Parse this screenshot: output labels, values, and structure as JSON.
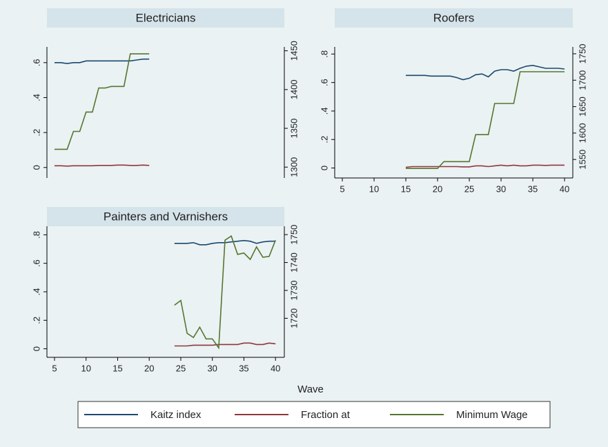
{
  "chart_data": [
    {
      "type": "line",
      "title": "Electricians",
      "x": [
        5,
        6,
        7,
        8,
        9,
        10,
        11,
        12,
        13,
        14,
        15,
        16,
        17,
        18,
        19,
        20
      ],
      "xlim": [
        3.8,
        41.4
      ],
      "ylim": [
        -0.06,
        0.69
      ],
      "yticks": [
        0,
        {
          "value": 0.2,
          "label": ".2"
        },
        {
          "value": 0.4,
          "label": ".4"
        },
        {
          "value": 0.6,
          "label": ".6"
        }
      ],
      "y2lim": [
        1286,
        1455
      ],
      "y2ticks": [
        1300,
        1350,
        1400,
        1450
      ],
      "series": [
        {
          "name": "Kaitz index",
          "color": "#1a476f",
          "values": [
            0.6,
            0.6,
            0.595,
            0.6,
            0.6,
            0.61,
            0.61,
            0.61,
            0.61,
            0.61,
            0.61,
            0.61,
            0.61,
            0.615,
            0.62,
            0.62
          ]
        },
        {
          "name": "Fraction at",
          "color": "#90353b",
          "values": [
            0.01,
            0.01,
            0.008,
            0.01,
            0.01,
            0.01,
            0.01,
            0.012,
            0.012,
            0.012,
            0.014,
            0.014,
            0.012,
            0.012,
            0.014,
            0.012
          ]
        },
        {
          "name": "Minimum Wage",
          "color": "#55752f",
          "axis": "y2",
          "values": [
            1323,
            1323,
            1323,
            1346,
            1346,
            1371,
            1371,
            1402,
            1402,
            1404,
            1404,
            1404,
            1446,
            1446,
            1446,
            1446
          ]
        }
      ]
    },
    {
      "type": "line",
      "title": "Roofers",
      "x": [
        15,
        16,
        17,
        18,
        19,
        20,
        21,
        22,
        23,
        24,
        25,
        26,
        27,
        28,
        29,
        30,
        31,
        32,
        33,
        34,
        35,
        36,
        37,
        38,
        39,
        40
      ],
      "xlim": [
        3.8,
        41.3
      ],
      "xticks": [
        5,
        10,
        15,
        20,
        25,
        30,
        35,
        40
      ],
      "ylim": [
        -0.07,
        0.85
      ],
      "yticks": [
        0,
        {
          "value": 0.2,
          "label": ".2"
        },
        {
          "value": 0.4,
          "label": ".4"
        },
        {
          "value": 0.6,
          "label": ".6"
        },
        {
          "value": 0.8,
          "label": ".8"
        }
      ],
      "y2lim": [
        1515,
        1763
      ],
      "y2ticks": [
        1550,
        1600,
        1650,
        1700,
        1750
      ],
      "series": [
        {
          "name": "Kaitz index",
          "color": "#1a476f",
          "values": [
            0.65,
            0.65,
            0.65,
            0.65,
            0.645,
            0.645,
            0.645,
            0.645,
            0.635,
            0.62,
            0.63,
            0.655,
            0.66,
            0.64,
            0.68,
            0.69,
            0.69,
            0.68,
            0.7,
            0.715,
            0.72,
            0.71,
            0.7,
            0.7,
            0.7,
            0.695
          ]
        },
        {
          "name": "Fraction at",
          "color": "#90353b",
          "values": [
            0.005,
            0.01,
            0.01,
            0.01,
            0.01,
            0.01,
            0.01,
            0.01,
            0.01,
            0.008,
            0.008,
            0.015,
            0.015,
            0.01,
            0.015,
            0.02,
            0.015,
            0.02,
            0.015,
            0.015,
            0.02,
            0.02,
            0.018,
            0.02,
            0.02,
            0.02
          ]
        },
        {
          "name": "Minimum Wage",
          "color": "#55752f",
          "axis": "y2",
          "values": [
            1533,
            1533,
            1533,
            1533,
            1533,
            1533,
            1546,
            1546,
            1546,
            1546,
            1546,
            1597,
            1597,
            1597,
            1656,
            1656,
            1656,
            1656,
            1716,
            1716,
            1716,
            1716,
            1716,
            1716,
            1716,
            1716
          ]
        }
      ]
    },
    {
      "type": "line",
      "title": "Painters and Varnishers",
      "x": [
        24,
        25,
        26,
        27,
        28,
        29,
        30,
        31,
        32,
        33,
        34,
        35,
        36,
        37,
        38,
        39,
        40
      ],
      "xlim": [
        3.8,
        41.4
      ],
      "xticks": [
        5,
        10,
        15,
        20,
        25,
        30,
        35,
        40
      ],
      "ylim": [
        -0.06,
        0.86
      ],
      "yticks": [
        0,
        {
          "value": 0.2,
          "label": ".2"
        },
        {
          "value": 0.4,
          "label": ".4"
        },
        {
          "value": 0.6,
          "label": ".6"
        },
        {
          "value": 0.8,
          "label": ".8"
        }
      ],
      "y2lim": [
        1706,
        1753
      ],
      "y2ticks": [
        1720,
        1730,
        1740,
        1750
      ],
      "series": [
        {
          "name": "Kaitz index",
          "color": "#1a476f",
          "values": [
            0.74,
            0.74,
            0.74,
            0.745,
            0.73,
            0.73,
            0.74,
            0.745,
            0.745,
            0.75,
            0.755,
            0.76,
            0.755,
            0.74,
            0.75,
            0.755,
            0.755
          ]
        },
        {
          "name": "Fraction at",
          "color": "#90353b",
          "values": [
            0.02,
            0.02,
            0.02,
            0.025,
            0.025,
            0.025,
            0.025,
            0.03,
            0.03,
            0.03,
            0.03,
            0.04,
            0.04,
            0.03,
            0.03,
            0.04,
            0.035
          ]
        },
        {
          "name": "Minimum Wage",
          "color": "#55752f",
          "axis": "y2",
          "values": [
            1724.7,
            1726.4,
            1714.6,
            1713.1,
            1716.8,
            1712.6,
            1712.6,
            1709.4,
            1748,
            1749.5,
            1742.9,
            1743.4,
            1741.1,
            1745.6,
            1741.9,
            1742.2,
            1748
          ]
        }
      ]
    }
  ],
  "xlabel": "Wave"
}
